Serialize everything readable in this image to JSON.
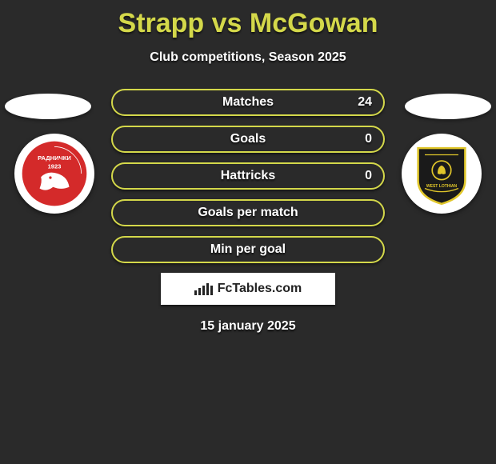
{
  "title": {
    "text": "Strapp vs McGowan",
    "color": "#d4d84a"
  },
  "subtitle": "Club competitions, Season 2025",
  "accent_color": "#d4d84a",
  "badges": {
    "left": {
      "bg": "#d42a2a",
      "label": "РАДНИЧКИ",
      "sub": "1923",
      "text_color": "#ffffff"
    },
    "right": {
      "bg": "#1a1a1a",
      "border": "#e0c62a",
      "text_color": "#e0c62a",
      "label": "WEST LOTHIAN"
    }
  },
  "stats": [
    {
      "label": "Matches",
      "value": "24"
    },
    {
      "label": "Goals",
      "value": "0"
    },
    {
      "label": "Hattricks",
      "value": "0"
    },
    {
      "label": "Goals per match",
      "value": ""
    },
    {
      "label": "Min per goal",
      "value": ""
    }
  ],
  "row_style": {
    "border_color": "#d4d84a",
    "label_color": "#ffffff",
    "value_color": "#ffffff"
  },
  "brand": {
    "text": "FcTables.com",
    "icon_heights": [
      6,
      9,
      12,
      15,
      12
    ]
  },
  "date": "15 january 2025"
}
